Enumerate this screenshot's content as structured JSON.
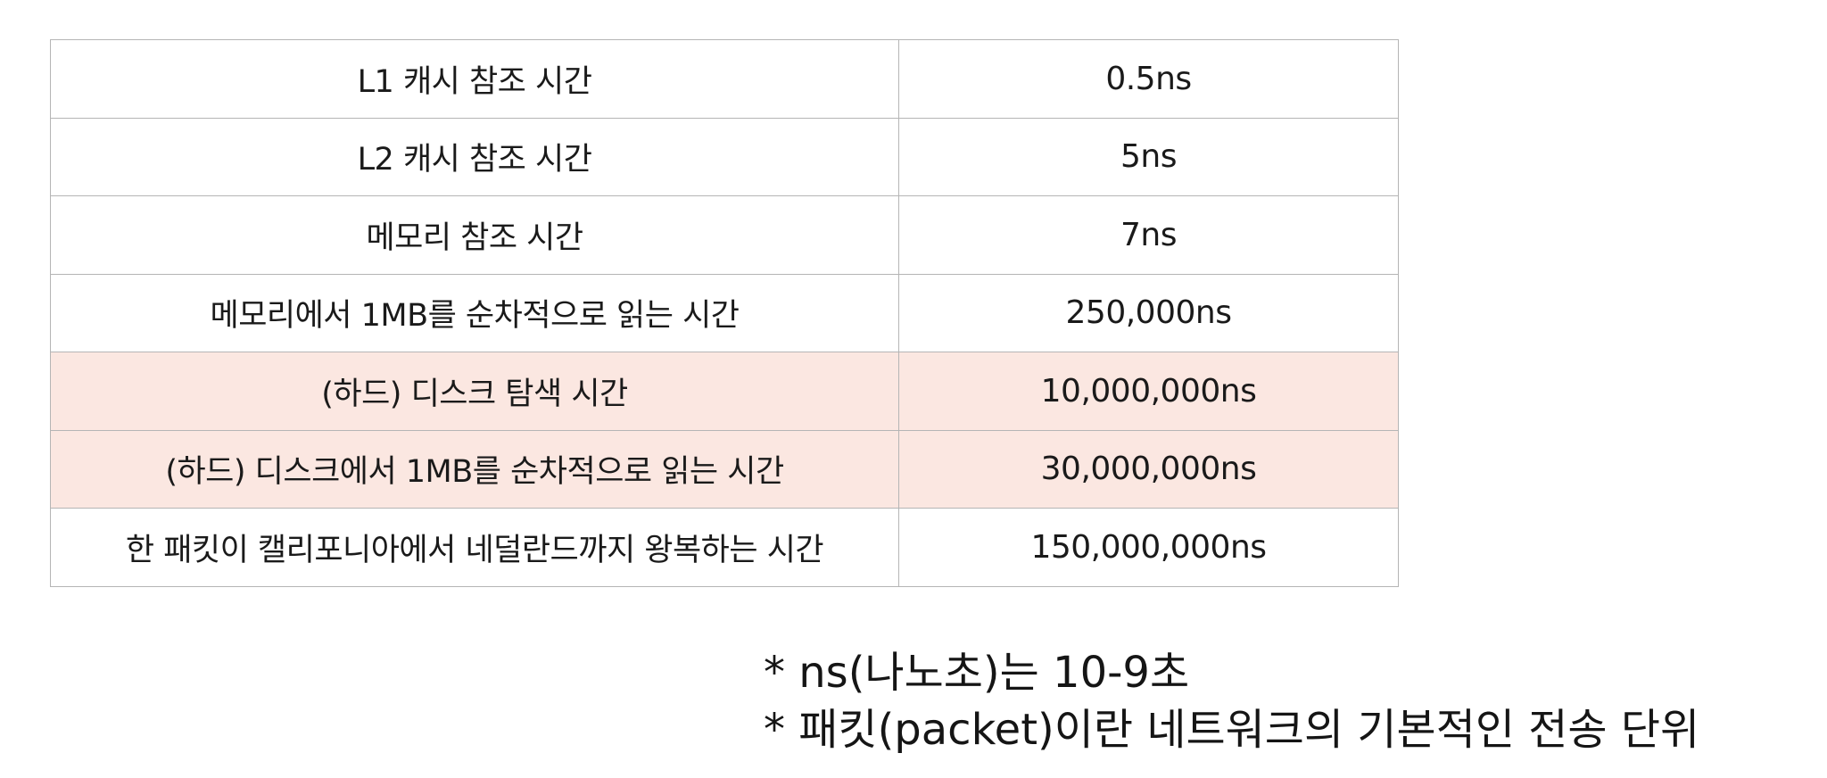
{
  "table": {
    "rows": [
      {
        "label": "L1 캐시 참조 시간",
        "value": "0.5ns",
        "highlight": false
      },
      {
        "label": "L2 캐시 참조 시간",
        "value": "5ns",
        "highlight": false
      },
      {
        "label": "메모리 참조 시간",
        "value": "7ns",
        "highlight": false
      },
      {
        "label": "메모리에서 1MB를 순차적으로 읽는 시간",
        "value": "250,000ns",
        "highlight": false
      },
      {
        "label": "(하드) 디스크 탐색 시간",
        "value": "10,000,000ns",
        "highlight": true
      },
      {
        "label": "(하드) 디스크에서 1MB를 순차적으로 읽는 시간",
        "value": "30,000,000ns",
        "highlight": true
      },
      {
        "label": "한 패킷이 캘리포니아에서 네덜란드까지 왕복하는 시간",
        "value": "150,000,000ns",
        "highlight": false
      }
    ],
    "highlight_color": "#fbe7e1",
    "border_color": "#b5b5b5"
  },
  "notes": [
    "* ns(나노초)는 10-9초",
    "* 패킷(packet)이란 네트워크의 기본적인 전송 단위"
  ]
}
